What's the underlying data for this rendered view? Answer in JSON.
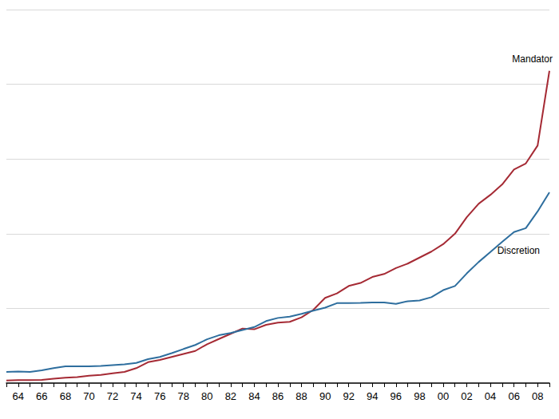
{
  "chart_data": {
    "type": "line",
    "categories": [
      null,
      "64",
      null,
      "66",
      null,
      "68",
      null,
      "70",
      null,
      "72",
      null,
      "74",
      null,
      "76",
      null,
      "78",
      null,
      "80",
      null,
      "82",
      null,
      "84",
      null,
      "86",
      null,
      "88",
      null,
      "90",
      null,
      "92",
      null,
      "94",
      null,
      "96",
      null,
      "98",
      null,
      "00",
      null,
      "02",
      null,
      "04",
      null,
      "06",
      null,
      "08",
      null
    ],
    "series": [
      {
        "name": "Mandator",
        "color": "#a52a34",
        "values": [
          18,
          20,
          20,
          22,
          30,
          36,
          40,
          50,
          55,
          65,
          75,
          100,
          140,
          155,
          175,
          195,
          215,
          260,
          295,
          330,
          365,
          360,
          390,
          405,
          410,
          440,
          490,
          570,
          600,
          650,
          670,
          710,
          730,
          770,
          800,
          840,
          880,
          930,
          1000,
          1110,
          1200,
          1260,
          1330,
          1430,
          1470,
          1590,
          2090
        ]
      },
      {
        "name": "Discretion",
        "color": "#2e6e9e",
        "values": [
          75,
          77,
          75,
          85,
          100,
          112,
          112,
          112,
          115,
          120,
          125,
          135,
          160,
          175,
          200,
          228,
          255,
          293,
          320,
          335,
          355,
          375,
          415,
          436,
          445,
          463,
          485,
          505,
          535,
          535,
          537,
          540,
          540,
          530,
          548,
          553,
          575,
          622,
          650,
          734,
          810,
          878,
          945,
          1011,
          1037,
          1149,
          1277
        ]
      }
    ],
    "ylim": [
      0,
      2500
    ],
    "yticks": [
      0,
      500,
      1000,
      1500,
      2000,
      2500
    ],
    "grid": true,
    "tick_labels": "x"
  }
}
